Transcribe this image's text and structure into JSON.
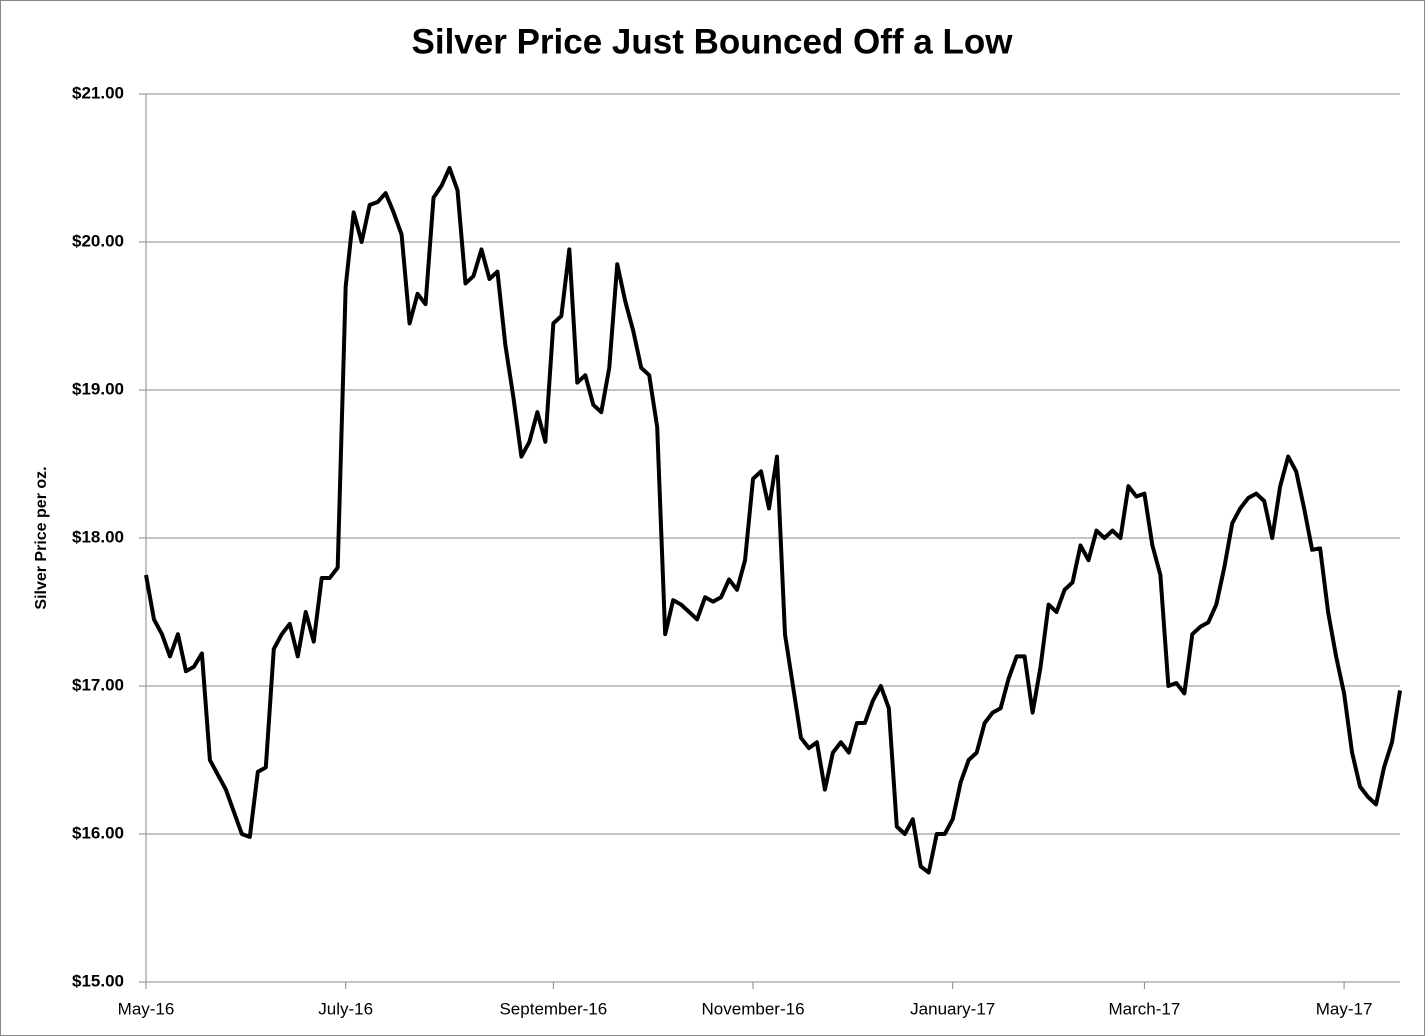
{
  "chart_data": {
    "type": "line",
    "title": "Silver Price Just Bounced Off a Low",
    "ylabel": "Silver Price per oz.",
    "categories": [
      "May-16",
      null,
      null,
      null,
      null,
      null,
      null,
      null,
      null,
      null,
      null,
      null,
      null,
      null,
      null,
      null,
      null,
      null,
      null,
      null,
      null,
      null,
      null,
      null,
      null,
      "July-16",
      null,
      null,
      null,
      null,
      null,
      null,
      null,
      null,
      null,
      null,
      null,
      null,
      null,
      null,
      null,
      null,
      null,
      null,
      null,
      null,
      null,
      null,
      null,
      null,
      null,
      "September-16",
      null,
      null,
      null,
      null,
      null,
      null,
      null,
      null,
      null,
      null,
      null,
      null,
      null,
      null,
      null,
      null,
      null,
      null,
      null,
      null,
      null,
      null,
      null,
      null,
      "November-16",
      null,
      null,
      null,
      null,
      null,
      null,
      null,
      null,
      null,
      null,
      null,
      null,
      null,
      null,
      null,
      null,
      null,
      null,
      null,
      null,
      null,
      null,
      null,
      null,
      "January-17",
      null,
      null,
      null,
      null,
      null,
      null,
      null,
      null,
      null,
      null,
      null,
      null,
      null,
      null,
      null,
      null,
      null,
      null,
      null,
      null,
      null,
      null,
      null,
      "March-17",
      null,
      null,
      null,
      null,
      null,
      null,
      null,
      null,
      null,
      null,
      null,
      null,
      null,
      null,
      null,
      null,
      null,
      null,
      null,
      null,
      null,
      null,
      null,
      null,
      "May-17",
      null,
      null,
      null,
      null,
      null,
      null,
      null
    ],
    "series": [
      {
        "name": "Silver Price",
        "color": "#000000",
        "values": [
          17.75,
          17.45,
          17.35,
          17.2,
          17.35,
          17.1,
          17.13,
          17.22,
          16.5,
          16.4,
          16.3,
          16.15,
          16.0,
          15.98,
          16.42,
          16.45,
          17.25,
          17.35,
          17.42,
          17.2,
          17.5,
          17.3,
          17.73,
          17.73,
          17.8,
          19.7,
          20.2,
          20.0,
          20.25,
          20.27,
          20.33,
          20.2,
          20.05,
          19.45,
          19.65,
          19.58,
          20.3,
          20.38,
          20.5,
          20.35,
          19.72,
          19.77,
          19.95,
          19.75,
          19.8,
          19.3,
          18.95,
          18.55,
          18.65,
          18.85,
          18.65,
          19.45,
          19.5,
          19.95,
          19.05,
          19.1,
          18.9,
          18.85,
          19.15,
          19.85,
          19.6,
          19.4,
          19.15,
          19.1,
          18.75,
          17.35,
          17.58,
          17.55,
          17.5,
          17.45,
          17.6,
          17.57,
          17.6,
          17.72,
          17.65,
          17.85,
          18.4,
          18.45,
          18.2,
          18.55,
          17.35,
          17.0,
          16.65,
          16.58,
          16.62,
          16.3,
          16.55,
          16.62,
          16.55,
          16.75,
          16.75,
          16.9,
          17.0,
          16.85,
          16.05,
          16.0,
          16.1,
          15.78,
          15.74,
          16.0,
          16.0,
          16.1,
          16.35,
          16.5,
          16.55,
          16.75,
          16.82,
          16.85,
          17.05,
          17.2,
          17.2,
          16.82,
          17.13,
          17.55,
          17.5,
          17.65,
          17.7,
          17.95,
          17.85,
          18.05,
          18.0,
          18.05,
          18.0,
          18.35,
          18.28,
          18.3,
          17.95,
          17.75,
          17.0,
          17.02,
          16.95,
          17.35,
          17.4,
          17.43,
          17.55,
          17.8,
          18.1,
          18.2,
          18.27,
          18.3,
          18.25,
          18.0,
          18.35,
          18.55,
          18.45,
          18.2,
          17.92,
          17.93,
          17.5,
          17.2,
          16.95,
          16.55,
          16.32,
          16.25,
          16.2,
          16.45,
          16.62,
          16.97
        ]
      }
    ],
    "ylim": [
      15,
      21
    ],
    "yticks": [
      {
        "value": 15,
        "label": "$15.00"
      },
      {
        "value": 16,
        "label": "$16.00"
      },
      {
        "value": 17,
        "label": "$17.00"
      },
      {
        "value": 18,
        "label": "$18.00"
      },
      {
        "value": 19,
        "label": "$19.00"
      },
      {
        "value": 20,
        "label": "$20.00"
      },
      {
        "value": 21,
        "label": "$21.00"
      }
    ],
    "grid": true
  }
}
